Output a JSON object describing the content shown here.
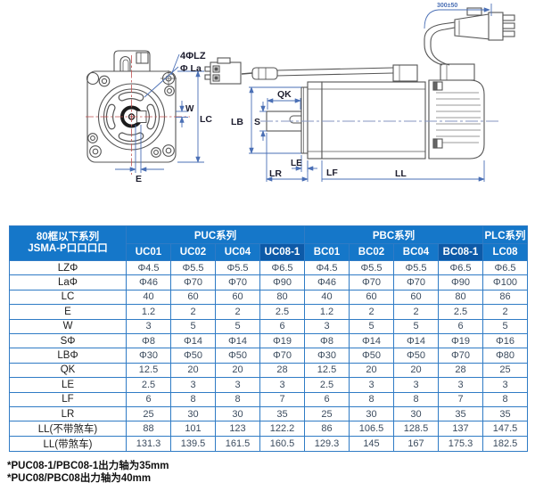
{
  "drawing": {
    "front_view": {
      "hole_callout": "4ΦLZ",
      "boss_callout": "Φ La",
      "key_width_label": "W",
      "frame_label": "LC",
      "offset_label": "E"
    },
    "side_view": {
      "keyway_label": "QK",
      "pilot_label": "LB",
      "shaft_label": "S",
      "flange_gap_label": "LE",
      "shaft_length_label": "LR",
      "flange_thickness_label": "LF",
      "body_length_label": "LL",
      "cable_length_label": "300±50"
    }
  },
  "table": {
    "corner_header_line1": "80框以下系列",
    "corner_header_line2": "JSMA-P口口口口",
    "groups": [
      {
        "label": "PUC系列",
        "span": 4
      },
      {
        "label": "PBC系列",
        "span": 4
      },
      {
        "label": "PLC系列",
        "span": 1
      }
    ],
    "columns": [
      {
        "label": "UC01",
        "highlight": false
      },
      {
        "label": "UC02",
        "highlight": false
      },
      {
        "label": "UC04",
        "highlight": false
      },
      {
        "label": "UC08-1",
        "highlight": true
      },
      {
        "label": "BC01",
        "highlight": false
      },
      {
        "label": "BC02",
        "highlight": false
      },
      {
        "label": "BC04",
        "highlight": false
      },
      {
        "label": "BC08-1",
        "highlight": true
      },
      {
        "label": "LC08",
        "highlight": false
      }
    ],
    "rows": [
      {
        "label": "LZΦ",
        "values": [
          "Φ4.5",
          "Φ5.5",
          "Φ5.5",
          "Φ6.5",
          "Φ4.5",
          "Φ5.5",
          "Φ5.5",
          "Φ6.5",
          "Φ6.5"
        ]
      },
      {
        "label": "LaΦ",
        "values": [
          "Φ46",
          "Φ70",
          "Φ70",
          "Φ90",
          "Φ46",
          "Φ70",
          "Φ70",
          "Φ90",
          "Φ100"
        ]
      },
      {
        "label": "LC",
        "values": [
          "40",
          "60",
          "60",
          "80",
          "40",
          "60",
          "60",
          "80",
          "86"
        ]
      },
      {
        "label": "E",
        "values": [
          "1.2",
          "2",
          "2",
          "2.5",
          "1.2",
          "2",
          "2",
          "2.5",
          "2"
        ]
      },
      {
        "label": "W",
        "values": [
          "3",
          "5",
          "5",
          "6",
          "3",
          "5",
          "5",
          "6",
          "5"
        ]
      },
      {
        "label": "SΦ",
        "values": [
          "Φ8",
          "Φ14",
          "Φ14",
          "Φ19",
          "Φ8",
          "Φ14",
          "Φ14",
          "Φ19",
          "Φ16"
        ]
      },
      {
        "label": "LBΦ",
        "values": [
          "Φ30",
          "Φ50",
          "Φ50",
          "Φ70",
          "Φ30",
          "Φ50",
          "Φ50",
          "Φ70",
          "Φ80"
        ]
      },
      {
        "label": "QK",
        "values": [
          "12.5",
          "20",
          "20",
          "28",
          "12.5",
          "20",
          "20",
          "28",
          "25"
        ]
      },
      {
        "label": "LE",
        "values": [
          "2.5",
          "3",
          "3",
          "3",
          "2.5",
          "3",
          "3",
          "3",
          "3"
        ]
      },
      {
        "label": "LF",
        "values": [
          "6",
          "8",
          "8",
          "7",
          "6",
          "8",
          "8",
          "7",
          "8"
        ]
      },
      {
        "label": "LR",
        "values": [
          "25",
          "30",
          "30",
          "35",
          "25",
          "30",
          "30",
          "35",
          "35"
        ]
      },
      {
        "label": "LL(不带煞车)",
        "values": [
          "88",
          "101",
          "123",
          "122.2",
          "86",
          "106.5",
          "128.5",
          "137",
          "147.5"
        ]
      },
      {
        "label": "LL(带煞车)",
        "values": [
          "131.3",
          "139.5",
          "161.5",
          "160.5",
          "129.3",
          "145",
          "167",
          "175.3",
          "182.5"
        ]
      }
    ]
  },
  "notes": [
    "*PUC08-1/PBC08-1出力轴为35mm",
    "*PUC08/PBC08出力轴为40mm"
  ],
  "colors": {
    "header_blue": "#1577c9",
    "header_highlight": "#0d5aa8",
    "grid_border": "#2f7bc5",
    "dimension_blue": "#4a6fb5",
    "centerline_red": "#c05050",
    "outline_gray": "#555555"
  }
}
